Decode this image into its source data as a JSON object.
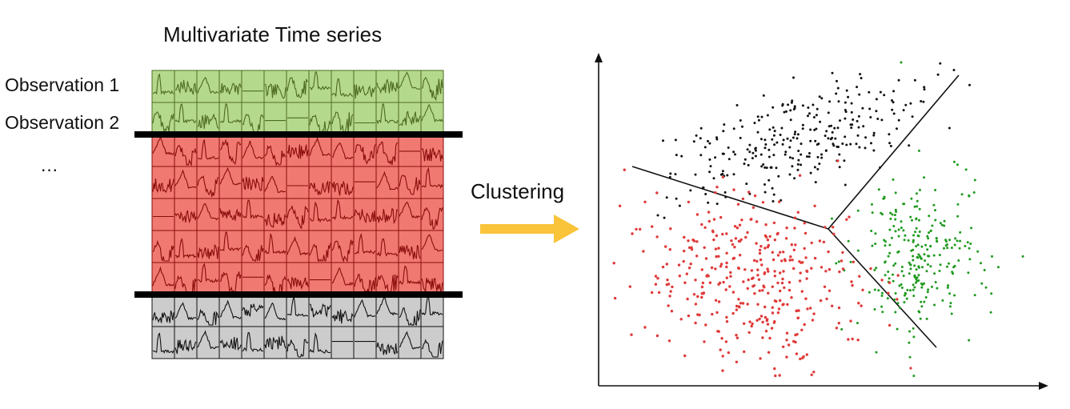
{
  "figure": {
    "title": "Multivariate Time series",
    "observations": [
      "Observation 1",
      "Observation 2"
    ],
    "ellipsis": "…",
    "arrow_label": "Clustering"
  },
  "colors": {
    "green_fill": "#b5d98c",
    "green_line": "#4d6b22",
    "red_fill": "#f07a72",
    "red_line": "#8b0c0c",
    "gray_fill": "#cccccc",
    "gray_line": "#111111",
    "separator": "#000000",
    "arrow": "#f9c43a",
    "black_points": "#111111",
    "green_points": "#1e9a1e",
    "red_points": "#e03a3a"
  },
  "grid": {
    "columns": 13,
    "groups": [
      {
        "name": "green",
        "rows": 2
      },
      {
        "name": "red",
        "rows": 5
      },
      {
        "name": "gray",
        "rows": 2
      }
    ]
  },
  "scatter": {
    "clusters": [
      {
        "name": "black",
        "count": 280
      },
      {
        "name": "green",
        "count": 270
      },
      {
        "name": "red",
        "count": 380
      }
    ]
  }
}
